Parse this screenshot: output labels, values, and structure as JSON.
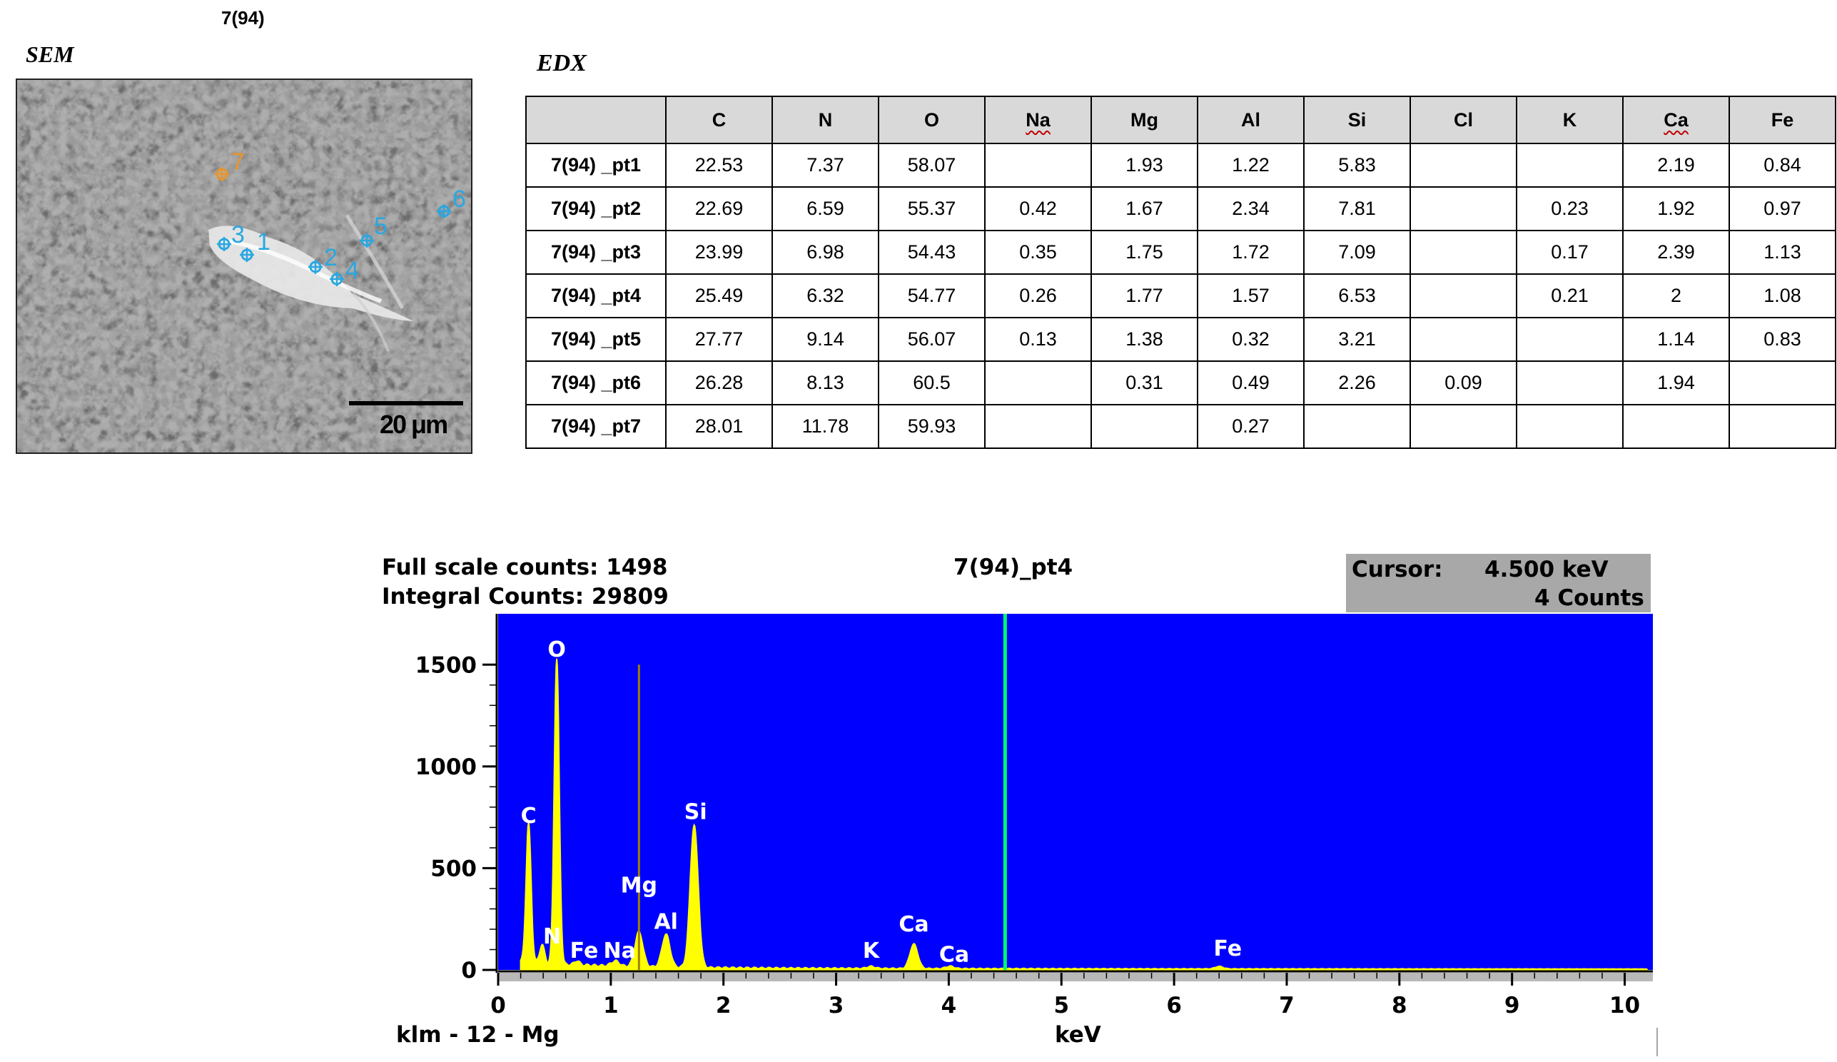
{
  "sample_title": "7(94)",
  "sem": {
    "label": "SEM",
    "scale_bar": "20 μm",
    "point_labels": [
      "1",
      "2",
      "3",
      "4",
      "5",
      "6",
      "7"
    ]
  },
  "edx": {
    "label": "EDX",
    "columns": [
      "",
      "C",
      "N",
      "O",
      "Na",
      "Mg",
      "Al",
      "Si",
      "Cl",
      "K",
      "Ca",
      "Fe"
    ],
    "rows": [
      [
        "7(94) _pt1",
        "22.53",
        "7.37",
        "58.07",
        "",
        "1.93",
        "1.22",
        "5.83",
        "",
        "",
        "2.19",
        "0.84"
      ],
      [
        "7(94) _pt2",
        "22.69",
        "6.59",
        "55.37",
        "0.42",
        "1.67",
        "2.34",
        "7.81",
        "",
        "0.23",
        "1.92",
        "0.97"
      ],
      [
        "7(94) _pt3",
        "23.99",
        "6.98",
        "54.43",
        "0.35",
        "1.75",
        "1.72",
        "7.09",
        "",
        "0.17",
        "2.39",
        "1.13"
      ],
      [
        "7(94) _pt4",
        "25.49",
        "6.32",
        "54.77",
        "0.26",
        "1.77",
        "1.57",
        "6.53",
        "",
        "0.21",
        "2",
        "1.08"
      ],
      [
        "7(94) _pt5",
        "27.77",
        "9.14",
        "56.07",
        "0.13",
        "1.38",
        "0.32",
        "3.21",
        "",
        "",
        "1.14",
        "0.83"
      ],
      [
        "7(94) _pt6",
        "26.28",
        "8.13",
        "60.5",
        "",
        "0.31",
        "0.49",
        "2.26",
        "0.09",
        "",
        "1.94",
        ""
      ],
      [
        "7(94) _pt7",
        "28.01",
        "11.78",
        "59.93",
        "",
        "",
        "0.27",
        "",
        "",
        "",
        "",
        ""
      ]
    ]
  },
  "spectrum": {
    "full_scale": "Full scale counts: 1498",
    "integral": "Integral Counts: 29809",
    "title": "7(94)_pt4",
    "cursor_label": "Cursor:",
    "cursor_kev": "4.500 keV",
    "cursor_counts": "4 Counts",
    "x_unit": "keV",
    "footer": "klm - 12 - Mg"
  },
  "colors": {
    "plot_bg": "#0000ff",
    "peaks": "#ffff00",
    "cursor_line": "#00ff66",
    "marker_line": "#a08000",
    "point_cyan": "#2aa7e0",
    "point_orange": "#e8952a"
  },
  "chart_data": {
    "type": "line",
    "title": "7(94)_pt4",
    "xlabel": "keV",
    "ylabel": "",
    "xlim": [
      0,
      10.25
    ],
    "ylim": [
      0,
      1750
    ],
    "x_ticks": [
      0,
      1,
      2,
      3,
      4,
      5,
      6,
      7,
      8,
      9,
      10
    ],
    "y_ticks": [
      0,
      500,
      1000,
      1500
    ],
    "cursor_kev": 4.5,
    "marker_kev": 1.25,
    "peaks": [
      {
        "label": "C",
        "kev": 0.27,
        "counts": 680
      },
      {
        "label": "N",
        "kev": 0.39,
        "counts": 90
      },
      {
        "label": "O",
        "kev": 0.52,
        "counts": 1498
      },
      {
        "label": "Fe",
        "kev": 0.7,
        "counts": 20
      },
      {
        "label": "Na",
        "kev": 1.04,
        "counts": 25
      },
      {
        "label": "Mg",
        "kev": 1.25,
        "counts": 170
      },
      {
        "label": "Al",
        "kev": 1.49,
        "counts": 160
      },
      {
        "label": "Si",
        "kev": 1.74,
        "counts": 700
      },
      {
        "label": "K",
        "kev": 3.31,
        "counts": 10
      },
      {
        "label": "Ca",
        "kev": 3.69,
        "counts": 120
      },
      {
        "label": "Ca",
        "kev": 4.01,
        "counts": 12
      },
      {
        "label": "Fe",
        "kev": 6.4,
        "counts": 12
      }
    ]
  }
}
